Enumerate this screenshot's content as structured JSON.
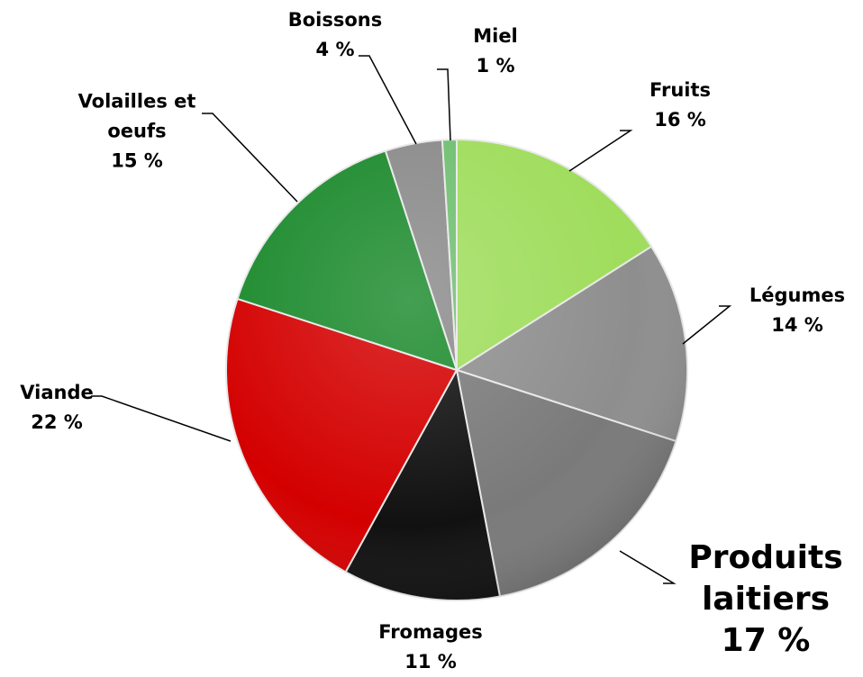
{
  "chart_data": {
    "type": "pie",
    "categories": [
      "Fruits",
      "Légumes",
      "Produits laitiers",
      "Fromages",
      "Viande",
      "Volailles et oeufs",
      "Boissons",
      "Miel"
    ],
    "values": [
      16,
      14,
      17,
      11,
      22,
      15,
      4,
      1
    ],
    "value_labels": [
      "16 %",
      "14 %",
      "17 %",
      "11 %",
      "22 %",
      "15 %",
      "4 %",
      "1 %"
    ],
    "colors": [
      "#9fdd5c",
      "#8e8e8e",
      "#7a7a7a",
      "#111111",
      "#d40000",
      "#1b8a2c",
      "#8a8a8a",
      "#6fbf70"
    ]
  }
}
